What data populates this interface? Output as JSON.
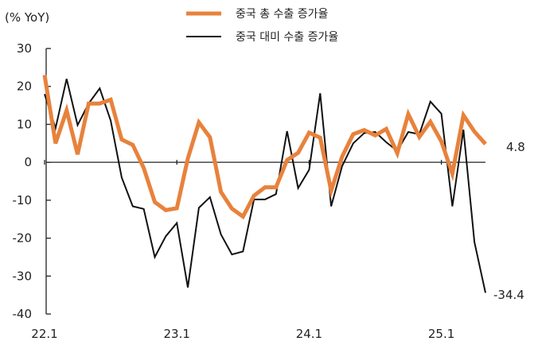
{
  "chart_data": {
    "type": "line",
    "unit_label": "(% YoY)",
    "ylim": [
      -40,
      30
    ],
    "y_ticks": [
      30,
      20,
      10,
      0,
      -10,
      -20,
      -30,
      -40
    ],
    "x_tick_labels": [
      "22.1",
      "23.1",
      "24.1",
      "25.1"
    ],
    "x_tick_index": [
      0,
      12,
      24,
      36
    ],
    "legend_position": "top-center",
    "grid": false,
    "series": [
      {
        "name": "중국 총 수출 증가율",
        "color": "#e8823c",
        "values": [
          23,
          5,
          13.7,
          2.1,
          15.5,
          15.5,
          16.5,
          6,
          4.6,
          -1.5,
          -10.5,
          -12.6,
          -12.1,
          1,
          10.5,
          6.6,
          -7.8,
          -12.2,
          -14.3,
          -8.8,
          -6.6,
          -6.6,
          0.6,
          2.5,
          7.8,
          6.5,
          -7.5,
          1.5,
          7.4,
          8.5,
          7.1,
          8.8,
          2.4,
          12.7,
          6.7,
          10.7,
          5.5,
          -3,
          12.4,
          8.1,
          4.8
        ]
      },
      {
        "name": "중국 대미 수출 증가율",
        "color": "#111111",
        "values": [
          18,
          9,
          22,
          9.8,
          15.5,
          19.5,
          11,
          -4,
          -11.6,
          -12.3,
          -25,
          -19.5,
          -16,
          -33,
          -12,
          -9.2,
          -19,
          -24.3,
          -23.5,
          -9.8,
          -9.8,
          -8.4,
          8.2,
          -6.8,
          -2,
          18.2,
          -11.6,
          -1,
          5,
          7.7,
          8,
          5.3,
          3,
          8,
          7.4,
          16,
          12.8,
          -11.6,
          8.6,
          -21,
          -34.4
        ]
      }
    ],
    "end_labels": [
      "4.8",
      "-34.4"
    ]
  }
}
